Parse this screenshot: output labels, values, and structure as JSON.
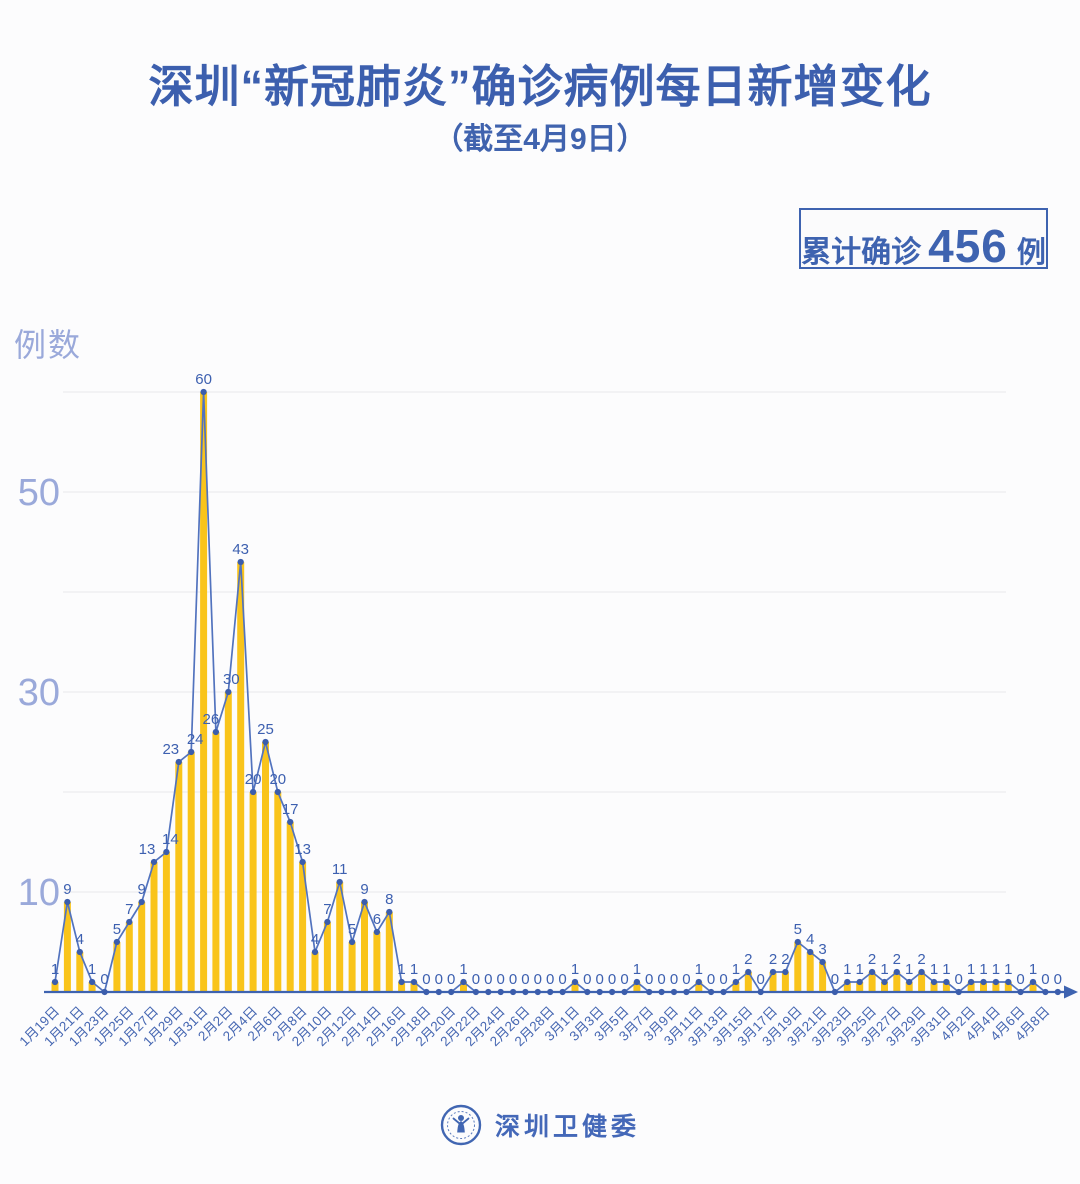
{
  "header": {
    "title": "深圳“新冠肺炎”确诊病例每日新增变化",
    "subtitle": "（截至4月9日）"
  },
  "badge": {
    "prefix": "累计确诊",
    "value": "456",
    "unit": "例"
  },
  "chart_data": {
    "type": "bar",
    "overlay": "line",
    "title": "深圳“新冠肺炎”确诊病例每日新增变化（截至4月9日）",
    "ylabel": "例数",
    "xlabel": "",
    "cumulative_total": 456,
    "y_axis": {
      "min": 0,
      "max": 60,
      "gridlines": [
        10,
        20,
        30,
        40,
        50,
        60
      ],
      "labeled_ticks": [
        10,
        30,
        50
      ]
    },
    "x_label_every": 2,
    "grid": "on",
    "legend": "none",
    "categories": [
      "1月19日",
      "1月20日",
      "1月21日",
      "1月22日",
      "1月23日",
      "1月24日",
      "1月25日",
      "1月26日",
      "1月27日",
      "1月28日",
      "1月29日",
      "1月30日",
      "1月31日",
      "2月1日",
      "2月2日",
      "2月3日",
      "2月4日",
      "2月5日",
      "2月6日",
      "2月7日",
      "2月8日",
      "2月9日",
      "2月10日",
      "2月11日",
      "2月12日",
      "2月13日",
      "2月14日",
      "2月15日",
      "2月16日",
      "2月17日",
      "2月18日",
      "2月19日",
      "2月20日",
      "2月21日",
      "2月22日",
      "2月23日",
      "2月24日",
      "2月25日",
      "2月26日",
      "2月27日",
      "2月28日",
      "2月29日",
      "3月1日",
      "3月2日",
      "3月3日",
      "3月4日",
      "3月5日",
      "3月6日",
      "3月7日",
      "3月8日",
      "3月9日",
      "3月10日",
      "3月11日",
      "3月12日",
      "3月13日",
      "3月14日",
      "3月15日",
      "3月16日",
      "3月17日",
      "3月18日",
      "3月19日",
      "3月20日",
      "3月21日",
      "3月22日",
      "3月23日",
      "3月24日",
      "3月25日",
      "3月26日",
      "3月27日",
      "3月28日",
      "3月29日",
      "3月30日",
      "3月31日",
      "4月1日",
      "4月2日",
      "4月3日",
      "4月4日",
      "4月5日",
      "4月6日",
      "4月7日",
      "4月8日",
      "4月9日"
    ],
    "values": [
      1,
      9,
      4,
      1,
      0,
      5,
      7,
      9,
      13,
      14,
      23,
      24,
      60,
      26,
      30,
      43,
      20,
      25,
      20,
      17,
      13,
      4,
      7,
      11,
      5,
      9,
      6,
      8,
      1,
      1,
      0,
      0,
      0,
      1,
      0,
      0,
      0,
      0,
      0,
      0,
      0,
      0,
      1,
      0,
      0,
      0,
      0,
      1,
      0,
      0,
      0,
      0,
      1,
      0,
      0,
      1,
      2,
      0,
      2,
      2,
      5,
      4,
      3,
      0,
      1,
      1,
      2,
      1,
      2,
      1,
      2,
      1,
      1,
      0,
      1,
      1,
      1,
      1,
      0,
      1,
      0,
      0
    ],
    "colors": {
      "bar": "#F9C41B",
      "line": "#5273BE",
      "point": "#3B5DAC",
      "value_label": "#3D60B0",
      "axis": "#3E63B0",
      "tick_label": "#9AA9DA",
      "x_tick_label": "#4667B2",
      "grid": "#ECECF0"
    }
  },
  "footer": {
    "logo": "shenzhen-health-commission-emblem",
    "name": "深圳卫健委"
  }
}
